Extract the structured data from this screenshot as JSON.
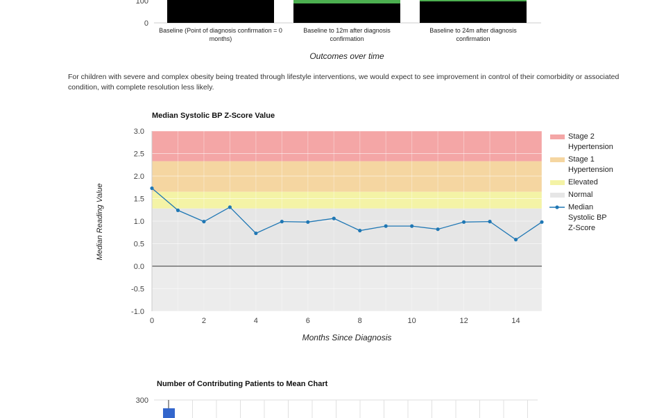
{
  "outcomes_chart": {
    "type": "bar",
    "y_tick_visible": [
      "100",
      "0"
    ],
    "categories": [
      "Baseline (Point of diagnosis confirmation = 0 months)",
      "Baseline to 12m after diagnosis confirmation",
      "Baseline to 24m after diagnosis confirmation"
    ],
    "xlabel": "Outcomes over time",
    "colors": {
      "bar": "#000000",
      "accent": "#4caf50"
    }
  },
  "paragraph": "For children with severe and complex obesity being treated through lifestyle interventions, we would expect to see improvement in control of their comorbidity or associated condition, with complete resolution less likely.",
  "chart_data": [
    {
      "type": "line",
      "title": "Median Systolic BP Z-Score Value",
      "xlabel": "Months Since Diagnosis",
      "ylabel": "Median Reading Value",
      "x": [
        0,
        1,
        2,
        3,
        4,
        5,
        6,
        7,
        8,
        9,
        10,
        11,
        12,
        13,
        14,
        15
      ],
      "series": [
        {
          "name": "Median Systolic BP Z-Score",
          "values": [
            1.73,
            1.24,
            0.99,
            1.31,
            0.73,
            0.99,
            0.98,
            1.06,
            0.79,
            0.89,
            0.89,
            0.82,
            0.98,
            0.99,
            0.59,
            0.98
          ],
          "color": "#1f77b4"
        }
      ],
      "xlim": [
        0,
        15
      ],
      "ylim": [
        -1.0,
        3.0
      ],
      "x_ticks": [
        0,
        2,
        4,
        6,
        8,
        10,
        12,
        14
      ],
      "y_ticks": [
        "3.0",
        "2.5",
        "2.0",
        "1.5",
        "1.0",
        "0.5",
        "0.0",
        "-0.5",
        "-1.0"
      ],
      "bands": [
        {
          "name": "Stage 2 Hypertension",
          "from": 2.33,
          "to": 3.0,
          "color": "#f4a6a6"
        },
        {
          "name": "Stage 1 Hypertension",
          "from": 1.65,
          "to": 2.33,
          "color": "#f5d6a1"
        },
        {
          "name": "Elevated",
          "from": 1.28,
          "to": 1.65,
          "color": "#f4f3a6"
        },
        {
          "name": "Normal",
          "from": -1.0,
          "to": 1.28,
          "color": "#e6e6e6"
        }
      ],
      "grid": true,
      "legend": "right"
    },
    {
      "type": "bar",
      "title": "Number of Contributing Patients to Mean Chart",
      "y_tick_visible": [
        "300"
      ],
      "color": "#3366cc"
    }
  ]
}
